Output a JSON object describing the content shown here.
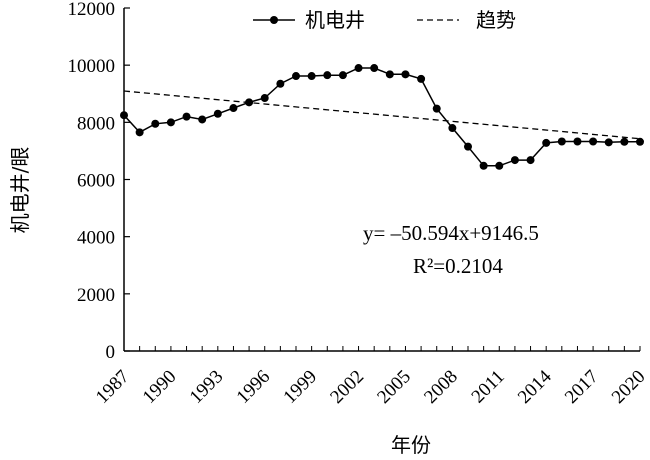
{
  "chart_data": {
    "type": "line",
    "xlabel": "年份",
    "ylabel": "机电井/眼",
    "xlim": [
      1987,
      2020
    ],
    "ylim": [
      0,
      12000
    ],
    "x_ticks": [
      1987,
      1990,
      1993,
      1996,
      1999,
      2002,
      2005,
      2008,
      2011,
      2014,
      2017,
      2020
    ],
    "y_ticks": [
      0,
      2000,
      4000,
      6000,
      8000,
      10000,
      12000
    ],
    "legend_position": "top",
    "grid": false,
    "series": [
      {
        "name": "机电井",
        "style": "solid line with filled circle markers",
        "color": "#000000",
        "x": [
          1987,
          1988,
          1989,
          1990,
          1991,
          1992,
          1993,
          1994,
          1995,
          1996,
          1997,
          1998,
          1999,
          2000,
          2001,
          2002,
          2003,
          2004,
          2005,
          2006,
          2007,
          2008,
          2009,
          2010,
          2011,
          2012,
          2013,
          2014,
          2015,
          2016,
          2017,
          2018,
          2019,
          2020
        ],
        "values": [
          8250,
          7650,
          7950,
          8000,
          8200,
          8100,
          8300,
          8500,
          8700,
          8850,
          9350,
          9620,
          9620,
          9650,
          9650,
          9900,
          9900,
          9680,
          9680,
          9520,
          8480,
          7800,
          7150,
          6480,
          6480,
          6680,
          6680,
          7280,
          7330,
          7330,
          7330,
          7300,
          7320,
          7320
        ]
      },
      {
        "name": "趋势",
        "style": "dashed line",
        "color": "#000000",
        "x": [
          1987,
          2020
        ],
        "values": [
          9095.9,
          7426.3
        ]
      }
    ],
    "annotations": {
      "equation": "y= –50.594x+9146.5",
      "r_squared": "R²=0.2104"
    }
  }
}
